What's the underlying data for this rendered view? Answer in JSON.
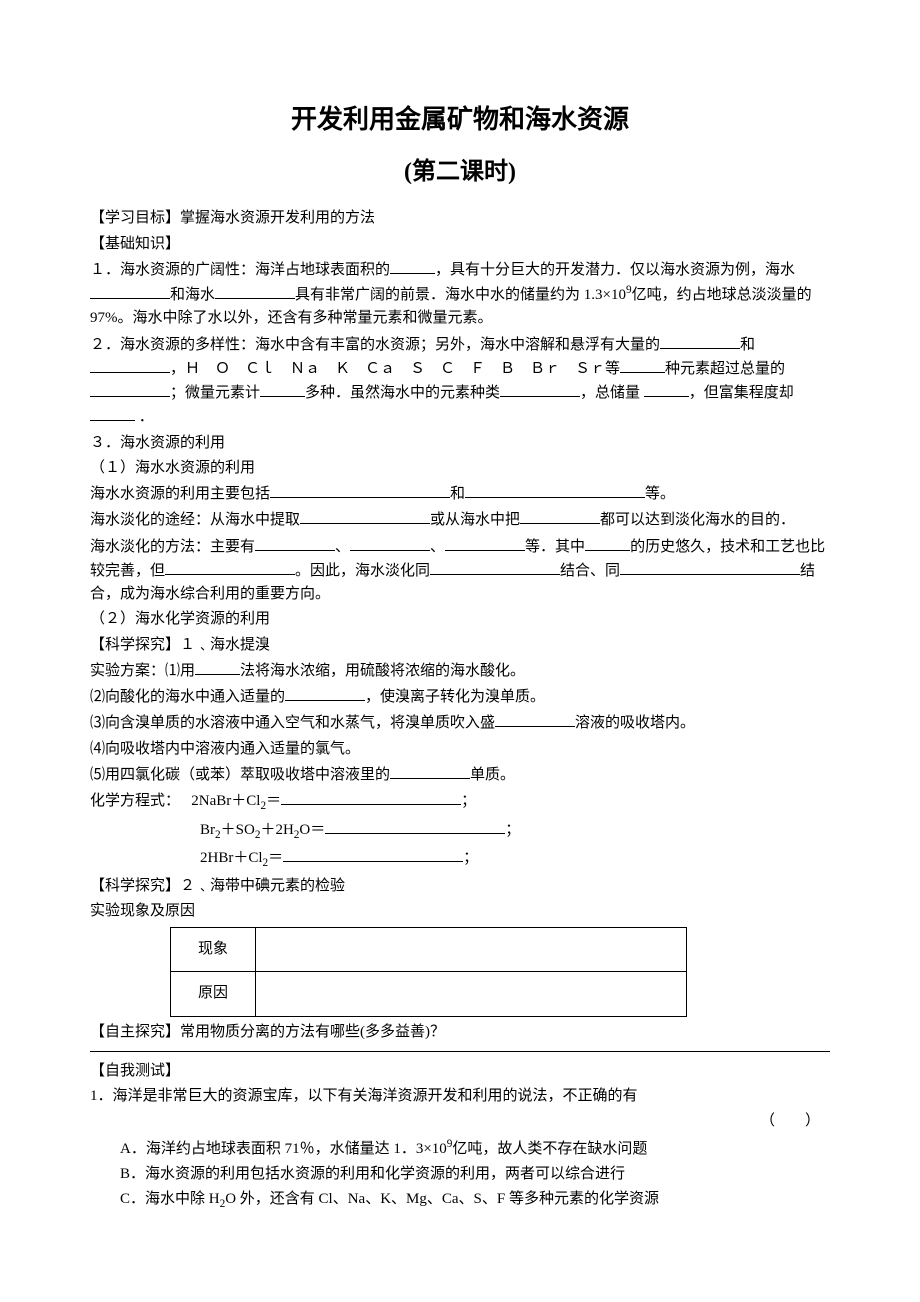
{
  "title": "开发利用金属矿物和海水资源",
  "subtitle": "(第二课时)",
  "labels": {
    "goal": "【学习目标】",
    "goal_text": "掌握海水资源开发利用的方法",
    "basic": "【基础知识】",
    "b1_a": "１．海水资源的广阔性：海洋占地球表面积的",
    "b1_b": "，具有十分巨大的开发潜力．仅以海水资源为例，海水",
    "b1_c": "和海水",
    "b1_d": "具有非常广阔的前景．海水中水的储量约为 1.3×10",
    "b1_sup": "9",
    "b1_e": "亿吨，约占地球总淡淡量的 97%。海水中除了水以外，还含有多种常量元素和微量元素。",
    "b2_a": "２．海水资源的多样性：海水中含有丰富的水资源；另外，海水中溶解和悬浮有大量的",
    "b2_b": "和",
    "b2_c": "，Ｈ　Ｏ　Ｃｌ　Ｎａ　Ｋ　Ｃａ　Ｓ　Ｃ　Ｆ　Ｂ　Ｂｒ　Ｓｒ等",
    "b2_d": "种元素超过总量的",
    "b2_e": "；微量元素计",
    "b2_f": "多种．虽然海水中的元素种类",
    "b2_g": "，总储量  ",
    "b2_h": "，但富集程度却",
    "b2_i": "    ．",
    "b3": "３．海水资源的利用",
    "b3_1": "（１）海水水资源的利用",
    "b3_1a": "海水水资源的利用主要包括",
    "b3_1b": "和",
    "b3_1c": "等。",
    "b3_2a": "海水淡化的途经：从海水中提取",
    "b3_2b": "或从海水中把",
    "b3_2c": "都可以达到淡化海水的目的．",
    "b3_3a": "海水淡化的方法：主要有",
    "b3_3b": "、",
    "b3_3c": "、",
    "b3_3d": "等．其中",
    "b3_3e": "的历史悠久，技术和工艺也比较完善，但",
    "b3_3f": "。因此，海水淡化同",
    "b3_3g": "结合、同",
    "b3_3h": "结合，成为海水综合利用的重要方向。",
    "b3_2": "（２）海水化学资源的利用",
    "sci1": "【科学探究】１﹑海水提溴",
    "s1_1": "实验方案：⑴用",
    "s1_1b": "法将海水浓缩，用硫酸将浓缩的海水酸化。",
    "s1_2": "⑵向酸化的海水中通入适量的",
    "s1_2b": "，使溴离子转化为溴单质。",
    "s1_3": "⑶向含溴单质的水溶液中通入空气和水蒸气，将溴单质吹入盛",
    "s1_3b": "溶液的吸收塔内。",
    "s1_4": "⑷向吸收塔内中溶液内通入适量的氯气。",
    "s1_5": "⑸用四氯化碳（或苯）萃取吸收塔中溶液里的",
    "s1_5b": "单质。",
    "eq_label": "化学方程式：",
    "eq1_l": "2NaBr＋Cl",
    "eq1_s": "2",
    "eq1_eq": "＝",
    "eq2_l": "Br",
    "eq2_s": "2",
    "eq2_m": "＋SO",
    "eq2_m2": "＋2H",
    "eq2_o": "O＝",
    "eq3_l": "2HBr＋Cl",
    "semi": "；",
    "sci2": "【科学探究】２﹑海带中碘元素的检验",
    "obs": "实验现象及原因",
    "obs_row1": "现象",
    "obs_row2": "原因",
    "self1": "【自主探究】常用物质分离的方法有哪些(多多益善)？",
    "self2": "【自我测试】",
    "q1": "1．海洋是非常巨大的资源宝库，以下有关海洋资源开发和利用的说法，不正确的有",
    "q1_paren": "（　　）",
    "q1_a_pre": "A．海洋约占地球表面积 71％，水储量达 1．3×10",
    "q1_a_post": "亿吨，故人类不存在缺水问题",
    "q1_b": "B．海水资源的利用包括水资源的利用和化学资源的利用，两者可以综合进行",
    "q1_c_pre": "C．海水中除 H",
    "q1_c_mid": "O 外，还含有 Cl、Na、K、Mg、Ca、S、F 等多种元素的化学资源",
    "sup9": "9",
    "sub2": "2"
  }
}
